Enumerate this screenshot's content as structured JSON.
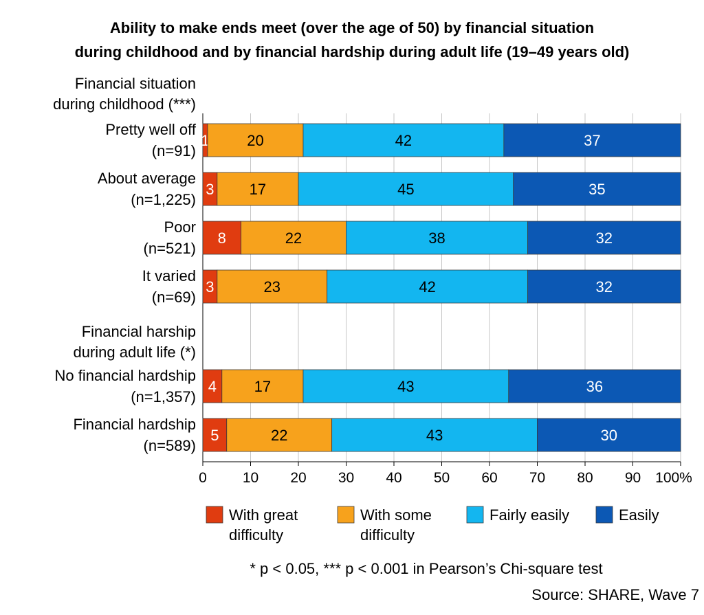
{
  "chart_data": {
    "type": "bar",
    "orientation": "horizontal",
    "stacked": true,
    "title_lines": [
      "Ability to make ends meet (over the age of 50) by financial situation",
      "during childhood and by financial hardship during adult life (19–49 years old)"
    ],
    "groups": [
      {
        "header_lines": [
          "Financial situation",
          "during childhood (***)"
        ],
        "rows": [
          {
            "label_lines": [
              "Pretty well off",
              "(n=91)"
            ],
            "values": [
              1,
              20,
              42,
              37
            ],
            "labels": [
              "1",
              "20",
              "42",
              "37"
            ]
          },
          {
            "label_lines": [
              "About average",
              "(n=1,225)"
            ],
            "values": [
              3,
              17,
              45,
              35
            ],
            "labels": [
              "3",
              "17",
              "45",
              "35"
            ]
          },
          {
            "label_lines": [
              "Poor",
              "(n=521)"
            ],
            "values": [
              8,
              22,
              38,
              32
            ],
            "labels": [
              "8",
              "22",
              "38",
              "32"
            ]
          },
          {
            "label_lines": [
              "It varied",
              "(n=69)"
            ],
            "values": [
              3,
              23,
              42,
              32
            ],
            "labels": [
              "3",
              "23",
              "42",
              "32"
            ]
          }
        ]
      },
      {
        "header_lines": [
          "Financial harship",
          "during adult life (*)"
        ],
        "rows": [
          {
            "label_lines": [
              "No financial hardship",
              "(n=1,357)"
            ],
            "values": [
              4,
              17,
              43,
              36
            ],
            "labels": [
              "4",
              "17",
              "43",
              "36"
            ]
          },
          {
            "label_lines": [
              "Financial hardship",
              "(n=589)"
            ],
            "values": [
              5,
              22,
              43,
              30
            ],
            "labels": [
              "5",
              "22",
              "43",
              "30"
            ]
          }
        ]
      }
    ],
    "series": [
      {
        "name_lines": [
          "With great",
          "difficulty"
        ],
        "color": "#e03c10",
        "label_color": "#ffffff"
      },
      {
        "name_lines": [
          "With some",
          "difficulty"
        ],
        "color": "#f7a21c",
        "label_color": "#000000"
      },
      {
        "name_lines": [
          "Fairly easily"
        ],
        "color": "#13b6f0",
        "label_color": "#000000"
      },
      {
        "name_lines": [
          "Easily"
        ],
        "color": "#0c58b4",
        "label_color": "#ffffff"
      }
    ],
    "xlim": [
      0,
      100
    ],
    "xticks": [
      "0",
      "10",
      "20",
      "30",
      "40",
      "50",
      "60",
      "70",
      "80",
      "90",
      "100%"
    ],
    "grid": true,
    "legend_position": "bottom"
  },
  "footnote": "* p < 0.05, *** p < 0.001 in Pearson’s Chi-square test",
  "source": "Source: SHARE, Wave 7"
}
